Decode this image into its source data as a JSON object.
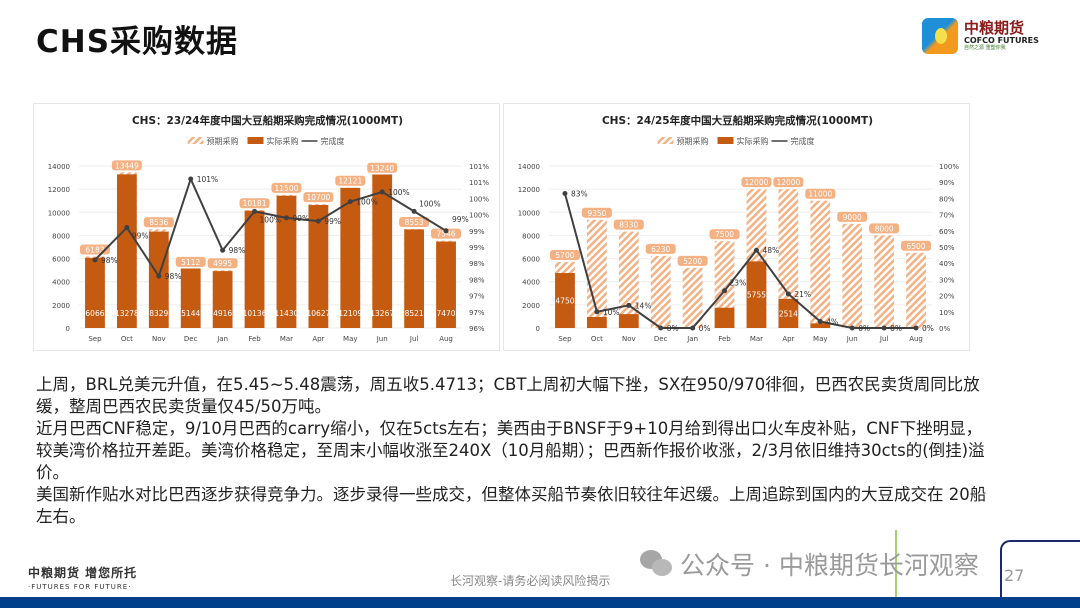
{
  "header": {
    "title": "CHS采购数据",
    "logo_cn": "中粮期货",
    "logo_en": "COFCO FUTURES",
    "logo_sub": "自然之源 重塑你我"
  },
  "legend": {
    "expected": "预期采购",
    "actual": "实际采购",
    "completion": "完成度"
  },
  "chart_data": [
    {
      "type": "bar",
      "title": "CHS：23/24年度中国大豆船期采购完成情况(1000MT)",
      "categories": [
        "Sep",
        "Oct",
        "Nov",
        "Dec",
        "Jan",
        "Feb",
        "Mar",
        "Apr",
        "May",
        "Jun",
        "Jul",
        "Aug"
      ],
      "series": [
        {
          "name": "预期采购",
          "values": [
            6183,
            13449,
            8536,
            5112,
            4995,
            10181,
            11500,
            10700,
            12121,
            13240,
            8553,
            7546
          ]
        },
        {
          "name": "实际采购",
          "values": [
            6066,
            13278,
            8329,
            5144,
            4916,
            10136,
            11430,
            10627,
            12109,
            13267,
            8521,
            7470
          ]
        },
        {
          "name": "完成度",
          "axis": "right",
          "values": [
            98.1,
            99.1,
            97.6,
            100.6,
            98.4,
            99.6,
            99.4,
            99.3,
            99.9,
            100.2,
            99.6,
            99.0
          ],
          "labels": [
            "98%",
            "99%",
            "98%",
            "101%",
            "98%",
            "100%",
            "99%",
            "99%",
            "100%",
            "100%",
            "100%",
            "99%"
          ]
        }
      ],
      "ylim": [
        0,
        14000
      ],
      "yticks": [
        "0",
        "2000",
        "4000",
        "6000",
        "8000",
        "10000",
        "12000",
        "14000"
      ],
      "y2lim": [
        96,
        101
      ],
      "y2ticks": [
        "96%",
        "97%",
        "97%",
        "98%",
        "98%",
        "99%",
        "99%",
        "100%",
        "100%",
        "101%",
        "101%"
      ]
    },
    {
      "type": "bar",
      "title": "CHS：24/25年度中国大豆船期采购完成情况(1000MT)",
      "categories": [
        "Sep",
        "Oct",
        "Nov",
        "Dec",
        "Jan",
        "Feb",
        "Mar",
        "Apr",
        "May",
        "Jun",
        "Jul",
        "Aug"
      ],
      "series": [
        {
          "name": "预期采购",
          "values": [
            5700,
            9350,
            8330,
            6230,
            5200,
            7500,
            12000,
            12000,
            11000,
            9000,
            8000,
            6500
          ]
        },
        {
          "name": "实际采购",
          "values": [
            4750,
            950,
            1200,
            0,
            0,
            1750,
            5755,
            2514,
            400,
            0,
            0,
            0
          ],
          "labels": [
            "4750",
            "",
            "",
            "",
            "",
            "",
            "5755",
            "2514",
            "",
            "",
            "",
            ""
          ]
        },
        {
          "name": "完成度",
          "axis": "right",
          "values": [
            83,
            10,
            14,
            0,
            0,
            23,
            48,
            21,
            4,
            0,
            0,
            0
          ],
          "labels": [
            "83%",
            "10%",
            "14%",
            "0%",
            "0%",
            "23%",
            "48%",
            "21%",
            "4%",
            "0%",
            "0%",
            "0%"
          ]
        }
      ],
      "ylim": [
        0,
        14000
      ],
      "yticks": [
        "0",
        "2000",
        "4000",
        "6000",
        "8000",
        "10000",
        "12000",
        "14000"
      ],
      "y2lim": [
        0,
        100
      ],
      "y2ticks": [
        "0%",
        "10%",
        "20%",
        "30%",
        "40%",
        "50%",
        "60%",
        "70%",
        "80%",
        "90%",
        "100%"
      ]
    }
  ],
  "body": {
    "paragraphs": [
      "上周，BRL兑美元升值，在5.45~5.48震荡，周五收5.4713；CBT上周初大幅下挫，SX在950/970徘徊，巴西农民卖货周同比放缓，整周巴西农民卖货量仅45/50万吨。",
      "近月巴西CNF稳定，9/10月巴西的carry缩小，仅在5cts左右；美西由于BNSF于9+10月给到得出口火车皮补贴，CNF下挫明显，较美湾价格拉开差距。美湾价格稳定，至周末小幅收涨至240X（10月船期）；巴西新作报价收涨，2/3月依旧维持30cts的(倒挂)溢价。",
      "美国新作贴水对比巴西逐步获得竞争力。逐步录得一些成交，但整体买船节奏依旧较往年迟缓。上周追踪到国内的大豆成交在 20船左右。"
    ]
  },
  "footer": {
    "slogan": "中粮期货 增您所托",
    "slogan_en": "·FUTURES FOR FUTURE·",
    "disclaimer": "长河观察-请务必阅读风险揭示",
    "watermark": "公众号 · 中粮期货长河观察",
    "page": "27"
  },
  "colors": {
    "actual": "#c55a11",
    "expected": "#f4b183",
    "line": "#404040",
    "footer_bar": "#003f8a"
  }
}
